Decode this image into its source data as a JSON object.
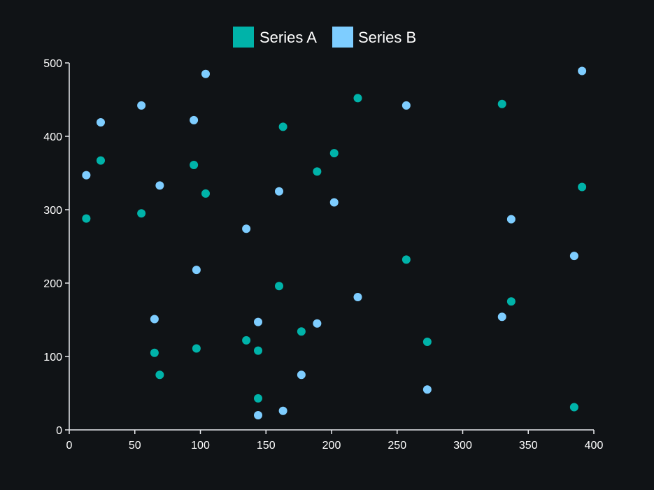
{
  "chart_data": {
    "type": "scatter",
    "title": "",
    "xlabel": "",
    "ylabel": "",
    "xlim": [
      0,
      400
    ],
    "ylim": [
      0,
      500
    ],
    "x_ticks": [
      0,
      50,
      100,
      150,
      200,
      250,
      300,
      350,
      400
    ],
    "y_ticks": [
      0,
      100,
      200,
      300,
      400,
      500
    ],
    "grid": false,
    "legend_position": "top-center",
    "series": [
      {
        "name": "Series A",
        "color": "#00b3a9",
        "points": [
          {
            "x": 13,
            "y": 288
          },
          {
            "x": 24,
            "y": 367
          },
          {
            "x": 55,
            "y": 295
          },
          {
            "x": 65,
            "y": 105
          },
          {
            "x": 69,
            "y": 75
          },
          {
            "x": 95,
            "y": 361
          },
          {
            "x": 97,
            "y": 111
          },
          {
            "x": 104,
            "y": 322
          },
          {
            "x": 135,
            "y": 122
          },
          {
            "x": 144,
            "y": 108
          },
          {
            "x": 144,
            "y": 43
          },
          {
            "x": 160,
            "y": 196
          },
          {
            "x": 163,
            "y": 413
          },
          {
            "x": 177,
            "y": 134
          },
          {
            "x": 189,
            "y": 352
          },
          {
            "x": 202,
            "y": 377
          },
          {
            "x": 220,
            "y": 452
          },
          {
            "x": 257,
            "y": 232
          },
          {
            "x": 273,
            "y": 120
          },
          {
            "x": 330,
            "y": 444
          },
          {
            "x": 337,
            "y": 175
          },
          {
            "x": 385,
            "y": 31
          },
          {
            "x": 391,
            "y": 331
          }
        ]
      },
      {
        "name": "Series B",
        "color": "#7ecdff",
        "points": [
          {
            "x": 13,
            "y": 347
          },
          {
            "x": 24,
            "y": 419
          },
          {
            "x": 55,
            "y": 442
          },
          {
            "x": 65,
            "y": 151
          },
          {
            "x": 69,
            "y": 333
          },
          {
            "x": 95,
            "y": 422
          },
          {
            "x": 97,
            "y": 218
          },
          {
            "x": 104,
            "y": 485
          },
          {
            "x": 135,
            "y": 274
          },
          {
            "x": 144,
            "y": 147
          },
          {
            "x": 144,
            "y": 20
          },
          {
            "x": 160,
            "y": 325
          },
          {
            "x": 163,
            "y": 26
          },
          {
            "x": 177,
            "y": 75
          },
          {
            "x": 189,
            "y": 145
          },
          {
            "x": 202,
            "y": 310
          },
          {
            "x": 220,
            "y": 181
          },
          {
            "x": 257,
            "y": 442
          },
          {
            "x": 273,
            "y": 55
          },
          {
            "x": 330,
            "y": 154
          },
          {
            "x": 337,
            "y": 287
          },
          {
            "x": 385,
            "y": 237
          },
          {
            "x": 391,
            "y": 489
          }
        ]
      }
    ]
  }
}
